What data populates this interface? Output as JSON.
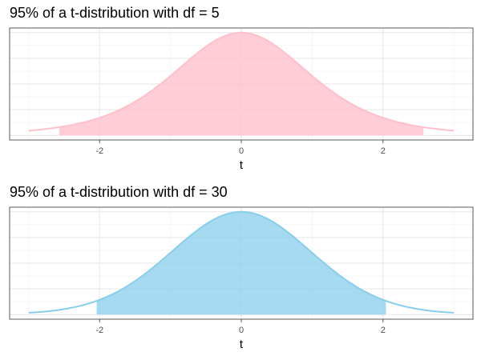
{
  "chart_data": [
    {
      "type": "area",
      "title": "95% of a t-distribution with df = 5",
      "df": 5,
      "xlabel": "t",
      "ylabel": "",
      "xlim": [
        -3,
        3
      ],
      "x_ticks": [
        -2,
        0,
        2
      ],
      "x_tick_labels": [
        "-2",
        "0",
        "2"
      ],
      "shaded_interval": [
        -2.571,
        2.571
      ],
      "shaded_share": "95%",
      "color": "#FFC0CB",
      "line_color": "#FFC0CB",
      "grid": true,
      "y_axis_labels": false
    },
    {
      "type": "area",
      "title": "95% of a t-distribution with df = 30",
      "df": 30,
      "xlabel": "t",
      "ylabel": "",
      "xlim": [
        -3,
        3
      ],
      "x_ticks": [
        -2,
        0,
        2
      ],
      "x_tick_labels": [
        "-2",
        "0",
        "2"
      ],
      "shaded_interval": [
        -2.042,
        2.042
      ],
      "shaded_share": "95%",
      "color": "#87CEEB",
      "line_color": "#87CEEB",
      "grid": true,
      "y_axis_labels": false
    }
  ]
}
